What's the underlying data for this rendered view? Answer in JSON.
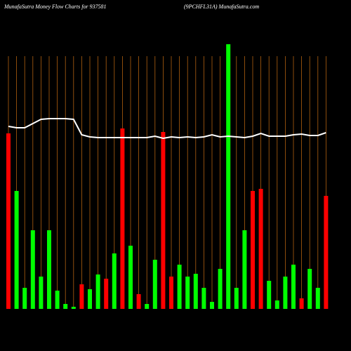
{
  "chart_data": {
    "type": "bar",
    "title": "MunafaSutra  Money Flow  Charts for 937581",
    "subtitle": "(9PCHFL31A) MunafaSutra.com",
    "categories": [
      null,
      null,
      null,
      null,
      null,
      null,
      null,
      null,
      null,
      null,
      null,
      null,
      null,
      null,
      null,
      null,
      null,
      null,
      null,
      null,
      null,
      null,
      null,
      null,
      null,
      null,
      null,
      null,
      null,
      null,
      null,
      null,
      null,
      null,
      null,
      null,
      null,
      null,
      null,
      null
    ],
    "values": [
      250,
      168,
      30,
      112,
      46,
      112,
      26,
      7,
      3,
      35,
      28,
      49,
      43,
      79,
      257,
      90,
      21,
      7,
      70,
      252,
      46,
      63,
      46,
      50,
      30,
      10,
      57,
      377,
      30,
      112,
      168,
      171,
      40,
      12,
      46,
      63,
      15,
      57,
      30,
      161
    ],
    "bar_colors": [
      "#ff0000",
      "#00ff00",
      "#00ff00",
      "#00ff00",
      "#00ff00",
      "#00ff00",
      "#00ff00",
      "#00ff00",
      "#00ff00",
      "#ff0000",
      "#00ff00",
      "#00ff00",
      "#ff0000",
      "#00ff00",
      "#ff0000",
      "#00ff00",
      "#ff0000",
      "#00ff00",
      "#00ff00",
      "#ff0000",
      "#ff0000",
      "#00ff00",
      "#00ff00",
      "#00ff00",
      "#00ff00",
      "#00ff00",
      "#00ff00",
      "#00ff00",
      "#00ff00",
      "#00ff00",
      "#ff0000",
      "#ff0000",
      "#00ff00",
      "#00ff00",
      "#00ff00",
      "#00ff00",
      "#ff0000",
      "#00ff00",
      "#00ff00",
      "#ff0000"
    ],
    "line_values": [
      260,
      258,
      258,
      264,
      270,
      271,
      271,
      271,
      270,
      248,
      245,
      244,
      244,
      244,
      244,
      244,
      244,
      244,
      246,
      243,
      245,
      244,
      245,
      244,
      245,
      248,
      245,
      246,
      245,
      244,
      246,
      250,
      246,
      246,
      246,
      248,
      249,
      247,
      247,
      251
    ],
    "line_color": "#ffffff",
    "grid_color": "#b06010",
    "ylim": [
      0,
      380
    ],
    "grid": true
  }
}
